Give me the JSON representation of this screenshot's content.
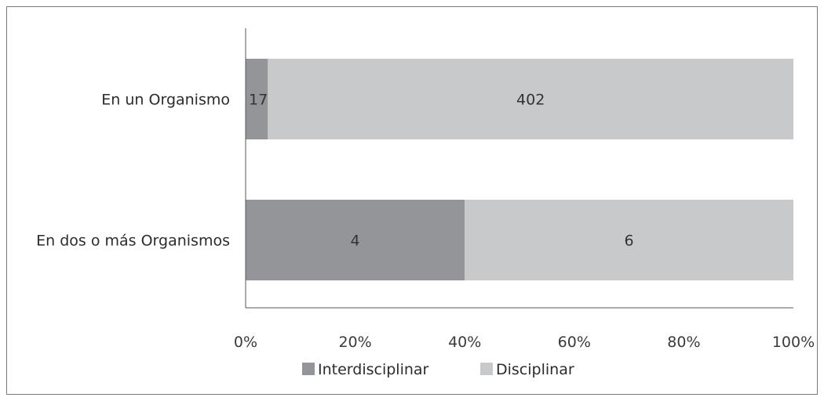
{
  "chart_data": {
    "type": "bar",
    "orientation": "horizontal",
    "stacked": "percent",
    "categories": [
      "En un Organismo",
      "En dos o más Organismos"
    ],
    "series": [
      {
        "name": "Interdisciplinar",
        "values": [
          17,
          4
        ],
        "color": "#939598"
      },
      {
        "name": "Disciplinar",
        "values": [
          402,
          6
        ],
        "color": "#c8c9ca"
      }
    ],
    "xlim": [
      0,
      100
    ],
    "xticks": [
      "0%",
      "20%",
      "40%",
      "60%",
      "80%",
      "100%"
    ],
    "grid": false,
    "legend_position": "bottom"
  }
}
